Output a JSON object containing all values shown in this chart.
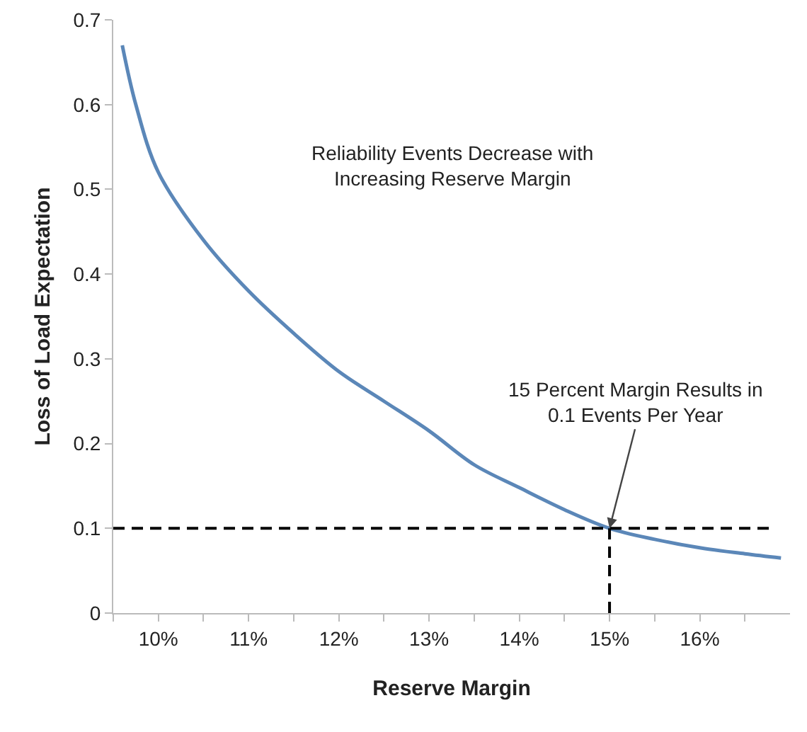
{
  "chart_data": {
    "type": "line",
    "xlabel": "Reserve Margin",
    "ylabel": "Loss of Load Expectation",
    "x": [
      9.6,
      9.75,
      10,
      10.5,
      11,
      11.5,
      12,
      12.5,
      13,
      13.5,
      14,
      14.5,
      15,
      15.5,
      16,
      16.5,
      16.9
    ],
    "series": [
      {
        "color": "#5b87b8",
        "values": [
          0.67,
          0.6,
          0.52,
          0.44,
          0.38,
          0.33,
          0.285,
          0.25,
          0.215,
          0.175,
          0.148,
          0.122,
          0.1,
          0.087,
          0.077,
          0.07,
          0.065
        ]
      },
      {
        "type": "line",
        "color": "#000000",
        "line_style": "dashed",
        "x": [
          9.5,
          16.8
        ],
        "values": [
          0.1,
          0.1
        ]
      },
      {
        "type": "line",
        "color": "#000000",
        "line_style": "dashed",
        "x": [
          15,
          15
        ],
        "values": [
          0,
          0.1
        ]
      }
    ],
    "xlim": [
      9.5,
      17
    ],
    "xticks": [
      {
        "value": 9.5,
        "label": null
      },
      {
        "value": 10,
        "label": "10%"
      },
      {
        "value": 10.5,
        "label": null
      },
      {
        "value": 11,
        "label": "11%"
      },
      {
        "value": 11.5,
        "label": null
      },
      {
        "value": 12,
        "label": "12%"
      },
      {
        "value": 12.5,
        "label": null
      },
      {
        "value": 13,
        "label": "13%"
      },
      {
        "value": 13.5,
        "label": null
      },
      {
        "value": 14,
        "label": "14%"
      },
      {
        "value": 14.5,
        "label": null
      },
      {
        "value": 15,
        "label": "15%"
      },
      {
        "value": 15.5,
        "label": null
      },
      {
        "value": 16,
        "label": "16%"
      },
      {
        "value": 16.5,
        "label": null
      }
    ],
    "ylim": [
      0,
      0.7
    ],
    "yticks": [
      0,
      0.1,
      0.2,
      0.3,
      0.4,
      0.5,
      0.6,
      0.7
    ],
    "annotations": [
      "Reliability Events Decrease with\nIncreasing Reserve Margin",
      {
        "text": "15 Percent Margin Results in\n0.1 Events Per Year",
        "x": 15,
        "y": 0.1
      }
    ],
    "grid": false,
    "marker": "none",
    "line_style": "solid"
  }
}
